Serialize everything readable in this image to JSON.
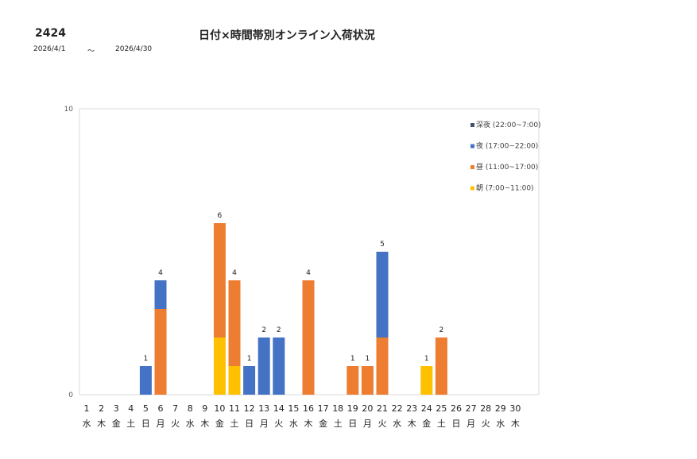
{
  "header": {
    "code": "2424",
    "title": "日付×時間帯別オンライン入荷状況",
    "date_from": "2026/4/1",
    "tilde": "～",
    "date_to": "2026/4/30"
  },
  "chart_data": {
    "type": "bar",
    "stacked": true,
    "ylim": [
      0,
      10
    ],
    "y_ticks": [
      "0",
      "10"
    ],
    "grid": false,
    "legend_position": "top-right",
    "categories": [
      "1",
      "2",
      "3",
      "4",
      "5",
      "6",
      "7",
      "8",
      "9",
      "10",
      "11",
      "12",
      "13",
      "14",
      "15",
      "16",
      "17",
      "18",
      "19",
      "20",
      "21",
      "22",
      "23",
      "24",
      "25",
      "26",
      "27",
      "28",
      "29",
      "30"
    ],
    "weekdays": [
      "水",
      "木",
      "金",
      "土",
      "日",
      "月",
      "火",
      "水",
      "木",
      "金",
      "土",
      "日",
      "月",
      "火",
      "水",
      "木",
      "金",
      "土",
      "日",
      "月",
      "火",
      "水",
      "木",
      "金",
      "土",
      "日",
      "月",
      "火",
      "水",
      "木"
    ],
    "series": [
      {
        "name": "朝 (7:00~11:00)",
        "color": "#FFC000",
        "values": [
          0,
          0,
          0,
          0,
          0,
          0,
          0,
          0,
          0,
          2,
          1,
          0,
          0,
          0,
          0,
          0,
          0,
          0,
          0,
          0,
          0,
          0,
          0,
          1,
          0,
          0,
          0,
          0,
          0,
          0
        ]
      },
      {
        "name": "昼 (11:00~17:00)",
        "color": "#ED7D31",
        "values": [
          0,
          0,
          0,
          0,
          0,
          3,
          0,
          0,
          0,
          4,
          3,
          0,
          0,
          0,
          0,
          4,
          0,
          0,
          1,
          1,
          2,
          0,
          0,
          0,
          2,
          0,
          0,
          0,
          0,
          0
        ]
      },
      {
        "name": "夜 (17:00~22:00)",
        "color": "#4472C4",
        "values": [
          0,
          0,
          0,
          0,
          1,
          1,
          0,
          0,
          0,
          0,
          0,
          1,
          2,
          2,
          0,
          0,
          0,
          0,
          0,
          0,
          3,
          0,
          0,
          0,
          0,
          0,
          0,
          0,
          0,
          0
        ]
      },
      {
        "name": "深夜 (22:00~7:00)",
        "color": "#44546A",
        "values": [
          0,
          0,
          0,
          0,
          0,
          0,
          0,
          0,
          0,
          0,
          0,
          0,
          0,
          0,
          0,
          0,
          0,
          0,
          0,
          0,
          0,
          0,
          0,
          0,
          0,
          0,
          0,
          0,
          0,
          0
        ]
      }
    ],
    "totals": [
      0,
      0,
      0,
      0,
      1,
      4,
      0,
      0,
      0,
      6,
      4,
      1,
      2,
      2,
      0,
      4,
      0,
      0,
      1,
      1,
      5,
      0,
      0,
      1,
      2,
      0,
      0,
      0,
      0,
      0
    ]
  }
}
